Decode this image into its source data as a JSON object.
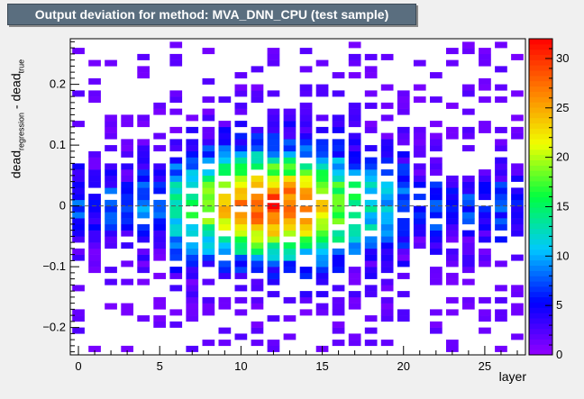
{
  "title": "Output deviation for method: MVA_DNN_CPU (test sample)",
  "axes": {
    "ylabel_parts": [
      "dead",
      "regression",
      " - dead",
      "true"
    ],
    "xlabel": "layer"
  },
  "chart_data": {
    "type": "heatmap",
    "title": "Output deviation for method: MVA_DNN_CPU (test sample)",
    "xlabel": "layer",
    "ylabel": "dead_regression - dead_true",
    "xlim": [
      -0.5,
      27.5
    ],
    "ylim": [
      -0.245,
      0.275
    ],
    "x_bin_width": 1,
    "y_bin_width": 0.01,
    "x_ticks": [
      0,
      5,
      10,
      15,
      20,
      25
    ],
    "y_ticks": [
      -0.2,
      -0.1,
      0,
      0.1,
      0.2
    ],
    "color_scale": {
      "min": 0,
      "max": 32,
      "ticks": [
        0,
        5,
        10,
        15,
        20,
        25,
        30
      ],
      "palette": [
        "#9400ff",
        "#0000ff",
        "#00c8ff",
        "#00ff40",
        "#f0ff00",
        "#ff8000",
        "#ff0000"
      ]
    },
    "reference_line": {
      "y": 0,
      "style": "dashed"
    },
    "peak_cell": {
      "layer": 12,
      "deviation": 0,
      "count": 32
    },
    "grid": false,
    "legend": "color bar right"
  }
}
